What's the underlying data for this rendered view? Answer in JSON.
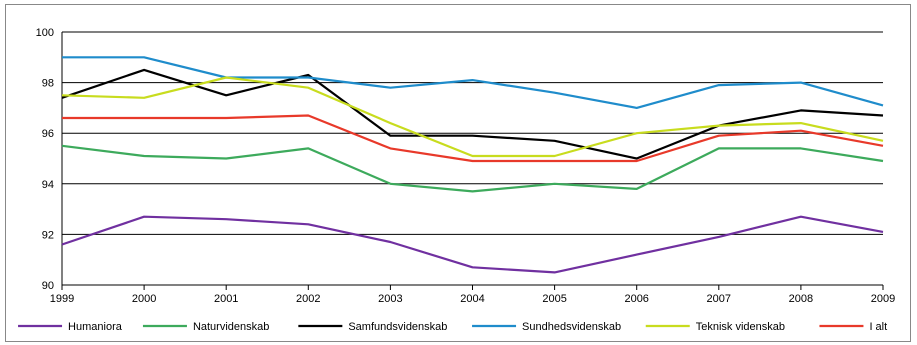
{
  "chart_data": {
    "type": "line",
    "title": "",
    "xlabel": "",
    "ylabel": "",
    "x": [
      "1999",
      "2000",
      "2001",
      "2002",
      "2003",
      "2004",
      "2005",
      "2006",
      "2007",
      "2008",
      "2009"
    ],
    "ylim": [
      90,
      100
    ],
    "yticks": [
      90,
      92,
      94,
      96,
      98,
      100
    ],
    "grid": true,
    "legend_position": "bottom",
    "series": [
      {
        "name": "Humaniora",
        "color": "#7030A0",
        "values": [
          91.6,
          92.7,
          92.6,
          92.4,
          91.7,
          90.7,
          90.5,
          91.2,
          91.9,
          92.7,
          92.1
        ]
      },
      {
        "name": "Naturvidenskab",
        "color": "#3DAA5C",
        "values": [
          95.5,
          95.1,
          95.0,
          95.4,
          94.0,
          93.7,
          94.0,
          93.8,
          95.4,
          95.4,
          94.9
        ]
      },
      {
        "name": "Samfundsvidenskab",
        "color": "#000000",
        "values": [
          97.4,
          98.5,
          97.5,
          98.3,
          95.9,
          95.9,
          95.7,
          95.0,
          96.3,
          96.9,
          96.7
        ]
      },
      {
        "name": "Sundhedsvidenskab",
        "color": "#1F8CCB",
        "values": [
          99.0,
          99.0,
          98.2,
          98.2,
          97.8,
          98.1,
          97.6,
          97.0,
          97.9,
          98.0,
          97.1
        ]
      },
      {
        "name": "Teknisk videnskab",
        "color": "#C8DC1E",
        "values": [
          97.5,
          97.4,
          98.2,
          97.8,
          96.4,
          95.1,
          95.1,
          96.0,
          96.3,
          96.4,
          95.7
        ]
      },
      {
        "name": "I alt",
        "color": "#E8392A",
        "values": [
          96.6,
          96.6,
          96.6,
          96.7,
          95.4,
          94.9,
          94.9,
          94.9,
          95.9,
          96.1,
          95.5
        ]
      }
    ]
  }
}
